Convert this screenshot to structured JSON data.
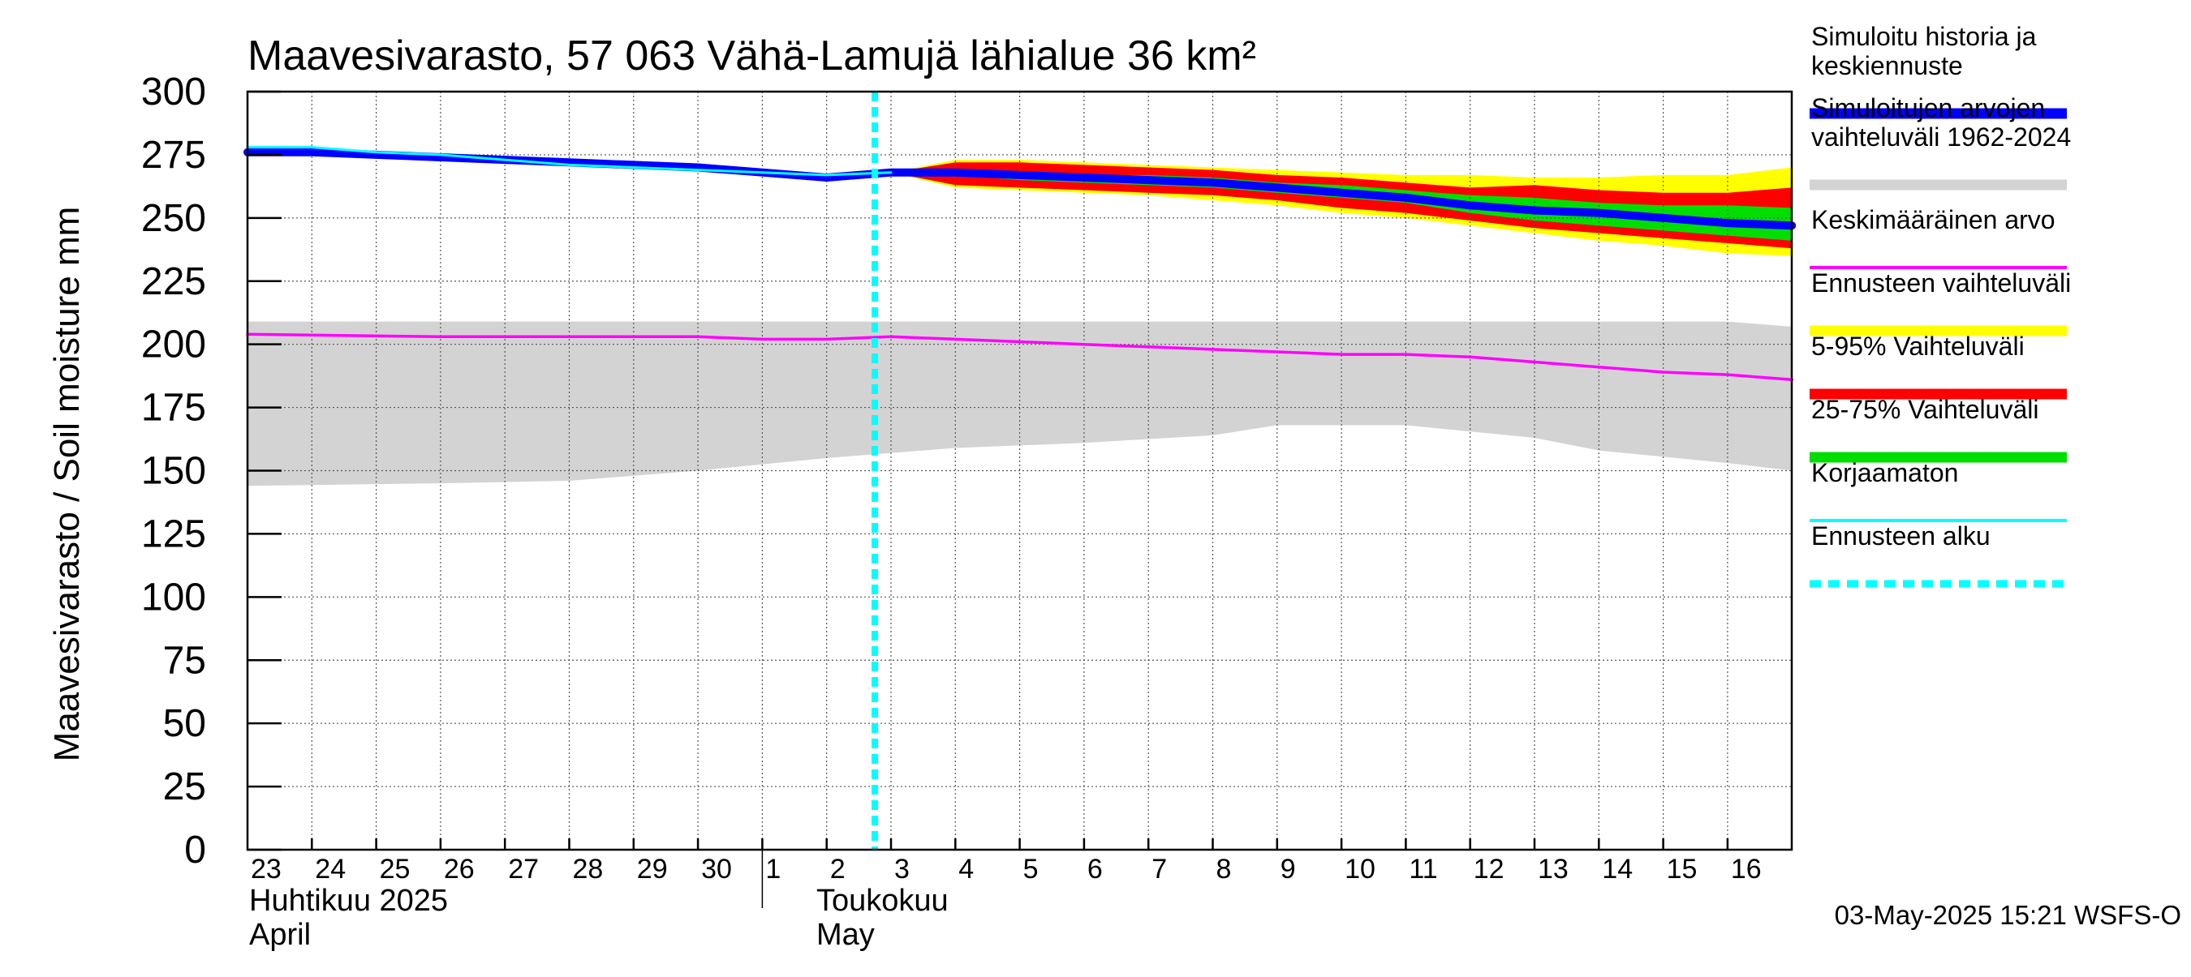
{
  "chart_data": {
    "type": "area",
    "title": "Maavesivarasto, 57 063 Vähä-Lamujä lähialue 36 km²",
    "ylabel": "Maavesivarasto / Soil moisture   mm",
    "ylim": [
      0,
      300
    ],
    "yticks": [
      0,
      25,
      50,
      75,
      100,
      125,
      150,
      175,
      200,
      225,
      250,
      275,
      300
    ],
    "xlim": [
      "2025-04-23",
      "2025-05-17"
    ],
    "x_day_labels": [
      "23",
      "24",
      "25",
      "26",
      "27",
      "28",
      "29",
      "30",
      "1",
      "2",
      "3",
      "4",
      "5",
      "6",
      "7",
      "8",
      "9",
      "10",
      "11",
      "12",
      "13",
      "14",
      "15",
      "16"
    ],
    "month_labels": [
      {
        "fi": "Huhtikuu  2025",
        "en": "April"
      },
      {
        "fi": "Toukokuu",
        "en": "May"
      }
    ],
    "forecast_start": "2025-05-03",
    "timestamp": "03-May-2025 15:21 WSFS-O",
    "grid": true,
    "legend_position": "right",
    "colors": {
      "simulated": "#0000ff",
      "hist_range": "#d3d3d3",
      "mean": "#ff00ff",
      "forecast_range": "#ffff00",
      "p5_95": "#ff0000",
      "p25_75": "#00dd00",
      "uncorrected": "#00ffff",
      "forecast_start": "#00ffff"
    },
    "legend": [
      {
        "key": "simulated",
        "label": "Simuloitu historia ja keskiennuste",
        "style": "solid-thick"
      },
      {
        "key": "hist_range",
        "label": "Simuloitujen arvojen vaihteluväli 1962-2024",
        "style": "solid-thick"
      },
      {
        "key": "mean",
        "label": "Keskimääräinen arvo",
        "style": "solid-thin"
      },
      {
        "key": "forecast_range",
        "label": "Ennusteen vaihteluväli",
        "style": "solid-thick"
      },
      {
        "key": "p5_95",
        "label": "5-95% Vaihteluväli",
        "style": "solid-thick"
      },
      {
        "key": "p25_75",
        "label": "25-75% Vaihteluväli",
        "style": "solid-thick"
      },
      {
        "key": "uncorrected",
        "label": "Korjaamaton",
        "style": "solid-thin"
      },
      {
        "key": "forecast_start",
        "label": "Ennusteen alku",
        "style": "dashed-thick"
      }
    ],
    "series": {
      "hist_range": {
        "x": [
          "2025-04-23",
          "2025-04-26",
          "2025-04-28",
          "2025-04-30",
          "2025-05-02",
          "2025-05-04",
          "2025-05-06",
          "2025-05-08",
          "2025-05-09",
          "2025-05-11",
          "2025-05-13",
          "2025-05-14",
          "2025-05-16",
          "2025-05-17"
        ],
        "lower": [
          144,
          145,
          146,
          150,
          155,
          159,
          161,
          164,
          168,
          168,
          163,
          158,
          153,
          150
        ],
        "upper": [
          209,
          209,
          209,
          209,
          209,
          209,
          209,
          209,
          209,
          209,
          209,
          209,
          209,
          207
        ]
      },
      "mean": {
        "x": [
          "2025-04-23",
          "2025-04-26",
          "2025-04-28",
          "2025-04-30",
          "2025-05-01",
          "2025-05-02",
          "2025-05-03",
          "2025-05-04",
          "2025-05-05",
          "2025-05-06",
          "2025-05-07",
          "2025-05-08",
          "2025-05-09",
          "2025-05-10",
          "2025-05-11",
          "2025-05-12",
          "2025-05-13",
          "2025-05-14",
          "2025-05-15",
          "2025-05-16",
          "2025-05-17"
        ],
        "y": [
          204,
          203,
          203,
          203,
          202,
          202,
          203,
          202,
          201,
          200,
          199,
          198,
          197,
          196,
          196,
          195,
          193,
          191,
          189,
          188,
          186
        ]
      },
      "simulated": {
        "x": [
          "2025-04-23",
          "2025-04-24",
          "2025-04-25",
          "2025-04-26",
          "2025-04-27",
          "2025-04-28",
          "2025-04-29",
          "2025-04-30",
          "2025-05-01",
          "2025-05-02",
          "2025-05-03",
          "2025-05-04",
          "2025-05-05",
          "2025-05-06",
          "2025-05-07",
          "2025-05-08",
          "2025-05-09",
          "2025-05-10",
          "2025-05-11",
          "2025-05-12",
          "2025-05-13",
          "2025-05-14",
          "2025-05-15",
          "2025-05-16",
          "2025-05-17"
        ],
        "y": [
          276,
          276,
          275,
          274,
          273,
          272,
          271,
          270,
          268,
          266,
          268,
          268,
          267,
          266,
          265,
          264,
          262,
          260,
          258,
          255,
          253,
          252,
          250,
          248,
          247
        ]
      },
      "uncorrected": {
        "x": [
          "2025-04-23",
          "2025-04-24",
          "2025-04-25",
          "2025-04-26",
          "2025-04-27",
          "2025-04-28",
          "2025-04-29",
          "2025-04-30",
          "2025-05-01",
          "2025-05-02",
          "2025-05-03"
        ],
        "y": [
          278,
          278,
          276,
          275,
          273,
          271,
          270,
          269,
          268,
          267,
          268
        ]
      },
      "forecast_range": {
        "x": [
          "2025-05-03",
          "2025-05-04",
          "2025-05-05",
          "2025-05-06",
          "2025-05-07",
          "2025-05-08",
          "2025-05-09",
          "2025-05-10",
          "2025-05-11",
          "2025-05-12",
          "2025-05-13",
          "2025-05-14",
          "2025-05-15",
          "2025-05-16",
          "2025-05-17"
        ],
        "lower": [
          268,
          262,
          261,
          260,
          259,
          257,
          255,
          252,
          250,
          247,
          244,
          241,
          239,
          236,
          235
        ],
        "upper": [
          268,
          273,
          273,
          272,
          271,
          270,
          269,
          268,
          267,
          267,
          266,
          266,
          267,
          267,
          270
        ]
      },
      "p5_95": {
        "x": [
          "2025-05-03",
          "2025-05-04",
          "2025-05-05",
          "2025-05-06",
          "2025-05-07",
          "2025-05-08",
          "2025-05-09",
          "2025-05-10",
          "2025-05-11",
          "2025-05-12",
          "2025-05-13",
          "2025-05-14",
          "2025-05-15",
          "2025-05-16",
          "2025-05-17"
        ],
        "lower": [
          268,
          263,
          262,
          261,
          260,
          259,
          257,
          254,
          252,
          249,
          246,
          244,
          242,
          240,
          238
        ],
        "upper": [
          268,
          272,
          272,
          271,
          270,
          269,
          267,
          266,
          264,
          262,
          263,
          261,
          260,
          260,
          262
        ]
      },
      "p25_75": {
        "x": [
          "2025-05-03",
          "2025-05-04",
          "2025-05-05",
          "2025-05-06",
          "2025-05-07",
          "2025-05-08",
          "2025-05-09",
          "2025-05-10",
          "2025-05-11",
          "2025-05-12",
          "2025-05-13",
          "2025-05-14",
          "2025-05-15",
          "2025-05-16",
          "2025-05-17"
        ],
        "lower": [
          268,
          267,
          265,
          264,
          263,
          262,
          260,
          258,
          256,
          252,
          249,
          247,
          245,
          243,
          241
        ],
        "upper": [
          268,
          269,
          268,
          267,
          267,
          266,
          264,
          263,
          261,
          259,
          258,
          256,
          255,
          255,
          254
        ]
      }
    }
  }
}
